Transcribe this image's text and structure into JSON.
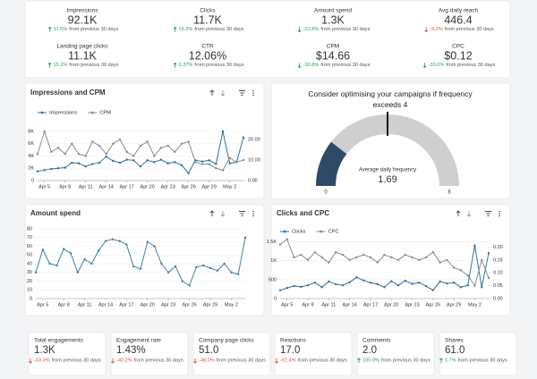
{
  "change_note": "from previous 30 days",
  "kpis": [
    {
      "label": "Impressions",
      "value": "92.1K",
      "change": "11.6%",
      "trend": "up",
      "color": "#2e9e5b"
    },
    {
      "label": "Clicks",
      "value": "11.7K",
      "change": "15.2%",
      "trend": "up",
      "color": "#2e9e5b"
    },
    {
      "label": "Amount spend",
      "value": "1.3K",
      "change": "-22.8%",
      "trend": "down",
      "color": "#2e9e5b"
    },
    {
      "label": "Avg daily reach",
      "value": "446.4",
      "change": "-9.2%",
      "trend": "down",
      "color": "#d9534f"
    },
    {
      "label": "Landing page clicks",
      "value": "11.1K",
      "change": "15.2%",
      "trend": "up",
      "color": "#2e9e5b"
    },
    {
      "label": "CTR",
      "value": "12.06%",
      "change": "0.37%",
      "trend": "up",
      "color": "#2e9e5b"
    },
    {
      "label": "CPM",
      "value": "$14.66",
      "change": "-30.8%",
      "trend": "down",
      "color": "#2e9e5b"
    },
    {
      "label": "CPC",
      "value": "$0.12",
      "change": "-33.0%",
      "trend": "down",
      "color": "#2e9e5b"
    }
  ],
  "engagement": [
    {
      "label": "Total engagements",
      "value": "1.3K",
      "change": "-33.3%",
      "trend": "down",
      "color": "#d9534f"
    },
    {
      "label": "Engagement rate",
      "value": "1.43%",
      "change": "-40.2%",
      "trend": "down",
      "color": "#d9534f"
    },
    {
      "label": "Company page clicks",
      "value": "51.0",
      "change": "-48.0%",
      "trend": "down",
      "color": "#d9534f"
    },
    {
      "label": "Reactions",
      "value": "17.0",
      "change": "-61.4%",
      "trend": "down",
      "color": "#d9534f"
    },
    {
      "label": "Comments",
      "value": "2.0",
      "change": "100.0%",
      "trend": "up",
      "color": "#2e9e5b"
    },
    {
      "label": "Shares",
      "value": "61.0",
      "change": "1.7%",
      "trend": "up",
      "color": "#2e9e5b"
    }
  ],
  "chart_data": [
    {
      "type": "line",
      "title": "Impressions and CPM",
      "categories": [
        null,
        "Apr 5",
        null,
        null,
        "Apr 8",
        null,
        null,
        "Apr 11",
        null,
        null,
        "Apr 14",
        null,
        null,
        "Apr 17",
        null,
        null,
        "Apr 20",
        null,
        null,
        "Apr 23",
        null,
        null,
        "Apr 26",
        null,
        null,
        "Apr 29",
        null,
        null,
        "May 2",
        null,
        null
      ],
      "series": [
        {
          "name": "Impressions",
          "color": "#2e6f9e",
          "values": [
            1500,
            1700,
            1900,
            2000,
            2100,
            2900,
            2800,
            2300,
            2700,
            2900,
            3900,
            3200,
            2900,
            3400,
            3300,
            2300,
            3300,
            3000,
            3400,
            2800,
            3000,
            2500,
            1200,
            3300,
            3100,
            3300,
            2700,
            8000,
            2800,
            3000,
            7000
          ]
        },
        {
          "name": "CPM",
          "color": "#8a8a8a",
          "axis": "y2",
          "values": [
            13,
            24,
            14,
            16,
            13,
            18,
            13,
            12,
            19,
            17,
            13,
            18,
            20,
            14,
            12,
            17,
            19,
            12,
            16,
            17,
            14,
            18,
            19,
            9,
            8,
            8,
            6,
            5,
            11,
            9,
            10
          ]
        }
      ],
      "ylim": [
        0,
        8000
      ],
      "yticks": [
        0,
        {
          "value": 2000,
          "label": "2K"
        },
        {
          "value": 4000,
          "label": "4K"
        },
        {
          "value": 6000,
          "label": "6K"
        },
        {
          "value": 8000,
          "label": "8K"
        }
      ],
      "y2lim": [
        0,
        24
      ],
      "y2ticks": [
        {
          "value": 0,
          "label": "0.00"
        },
        {
          "value": 10,
          "label": "10.00"
        },
        {
          "value": 20,
          "label": "20.00"
        }
      ],
      "grid": true,
      "legend": "top-left"
    },
    {
      "type": "gauge",
      "title": "Consider optimising your campaigns if frequency exceeds 4",
      "label": "Average daily frequency",
      "value": 1.69,
      "min": 0,
      "max": 8,
      "threshold": 4,
      "color": "#2d4a66"
    },
    {
      "type": "line",
      "title": "Amount spend",
      "categories": [
        null,
        "Apr 5",
        null,
        null,
        "Apr 8",
        null,
        null,
        "Apr 11",
        null,
        null,
        "Apr 14",
        null,
        null,
        "Apr 17",
        null,
        null,
        "Apr 20",
        null,
        null,
        "Apr 23",
        null,
        null,
        "Apr 26",
        null,
        null,
        "Apr 29",
        null,
        null,
        "May 2",
        null,
        null
      ],
      "values": [
        30,
        56,
        40,
        38,
        57,
        52,
        30,
        45,
        40,
        55,
        66,
        68,
        66,
        62,
        37,
        34,
        65,
        60,
        40,
        30,
        37,
        20,
        15,
        36,
        38,
        35,
        32,
        40,
        30,
        28,
        70
      ],
      "color": "#3b7fb0",
      "ylim": [
        0,
        80
      ],
      "yticks": [
        0,
        10,
        20,
        30,
        40,
        50,
        60,
        70,
        80
      ],
      "grid": true
    },
    {
      "type": "line",
      "title": "Clicks and CPC",
      "categories": [
        null,
        "Apr 5",
        null,
        null,
        "Apr 8",
        null,
        null,
        "Apr 11",
        null,
        null,
        "Apr 14",
        null,
        null,
        "Apr 17",
        null,
        null,
        "Apr 20",
        null,
        null,
        "Apr 23",
        null,
        null,
        "Apr 26",
        null,
        null,
        "Apr 29",
        null,
        null,
        "May 2",
        null,
        null
      ],
      "series": [
        {
          "name": "Clicks",
          "color": "#2e6f9e",
          "values": [
            220,
            280,
            330,
            310,
            350,
            420,
            300,
            450,
            380,
            350,
            430,
            560,
            480,
            420,
            380,
            300,
            460,
            350,
            470,
            390,
            420,
            330,
            220,
            450,
            400,
            420,
            300,
            350,
            1400,
            300,
            1200
          ]
        },
        {
          "name": "CPC",
          "color": "#8a8a8a",
          "axis": "y2",
          "values": [
            0.21,
            0.23,
            0.16,
            0.17,
            0.15,
            0.18,
            0.16,
            0.14,
            0.18,
            0.17,
            0.15,
            0.16,
            0.17,
            0.16,
            0.14,
            0.17,
            0.16,
            0.15,
            0.17,
            0.16,
            0.15,
            0.16,
            0.18,
            0.14,
            0.15,
            0.12,
            0.11,
            0.09,
            0.05,
            0.15,
            0.08
          ]
        }
      ],
      "ylim": [
        0,
        1700
      ],
      "yticks": [
        0,
        500,
        {
          "value": 1000,
          "label": "1K"
        },
        {
          "value": 1500,
          "label": "1.5K"
        }
      ],
      "y2lim": [
        0,
        0.25
      ],
      "y2ticks": [
        {
          "value": 0,
          "label": "0.00"
        },
        {
          "value": 0.05,
          "label": "0.05"
        },
        {
          "value": 0.1,
          "label": "0.10"
        },
        {
          "value": 0.15,
          "label": "0.15"
        },
        {
          "value": 0.2,
          "label": "0.20"
        }
      ],
      "grid": true,
      "legend": "top-left"
    }
  ]
}
